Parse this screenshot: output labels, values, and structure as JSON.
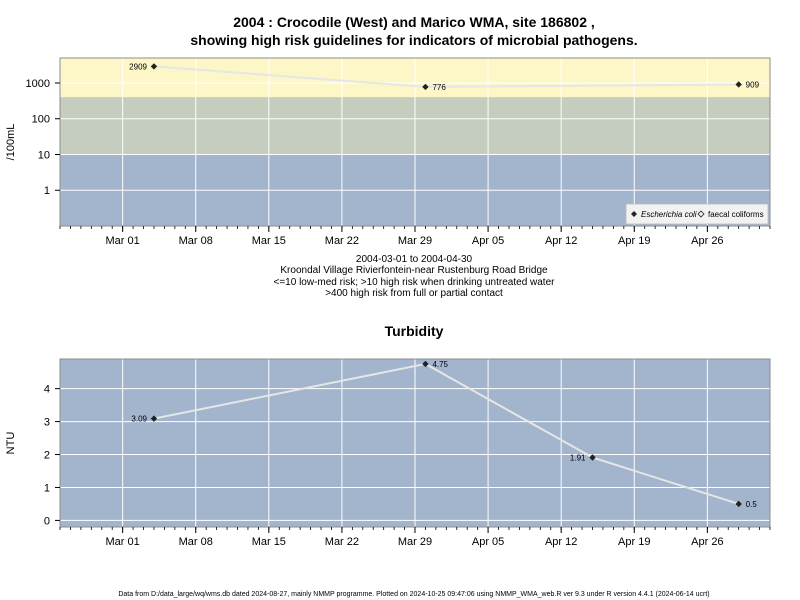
{
  "header": {
    "title_line1": "2004 : Crocodile (West) and Marico WMA, site 186802 ,",
    "title_line2": "showing high risk guidelines for indicators of microbial pathogens."
  },
  "notes": {
    "date_range": "2004-03-01 to 2004-04-30",
    "site_name": "Kroondal Village Rivierfontein-near Rustenburg Road Bridge",
    "guideline_1": "<=10 low-med risk; >10 high risk when drinking untreated water",
    "guideline_2": ">400 high risk from full or partial contact"
  },
  "footer": {
    "text": "Data from D:/data_large/wq/wms.db dated 2024-08-27, mainly NMMP programme. Plotted on 2024-10-25 09:47:06 using NMMP_WMA_web.R ver 9.3 under R version 4.4.1 (2024-06-14 ucrt)"
  },
  "colors": {
    "panel_blue": "#a3b4cd",
    "band_green": "#c5cdbf",
    "band_yellow": "#fdf7c8",
    "grid": "#ffffff",
    "line": "#e6e6e6",
    "point": "#222222"
  },
  "chart_data": [
    {
      "type": "line",
      "title": "",
      "ylabel": "/100mL",
      "yscale": "log",
      "ylim": [
        0.1,
        5000
      ],
      "xlim": [
        "2004-02-24",
        "2004-05-02"
      ],
      "x_ticks": [
        "Mar 01",
        "Mar 08",
        "Mar 15",
        "Mar 22",
        "Mar 29",
        "Apr 05",
        "Apr 12",
        "Apr 19",
        "Apr 26"
      ],
      "y_ticks": [
        "1",
        "10",
        "100",
        "1000"
      ],
      "y_tick_values": [
        1,
        10,
        100,
        1000
      ],
      "bands": [
        {
          "from": 0.1,
          "to": 10,
          "color": "#a3b4cd"
        },
        {
          "from": 10,
          "to": 400,
          "color": "#c5cdbf"
        },
        {
          "from": 400,
          "to": 5000,
          "color": "#fdf7c8"
        }
      ],
      "grid": true,
      "legend": {
        "position": "bottom-right",
        "entries": [
          "Escherichia coli",
          "faecal coliforms"
        ]
      },
      "series": [
        {
          "name": "Escherichia coli",
          "x": [
            "2004-03-04",
            "2004-03-30",
            "2004-04-29"
          ],
          "values": [
            2909,
            776,
            909
          ],
          "labels": [
            "2909",
            "776",
            "909"
          ]
        }
      ]
    },
    {
      "type": "line",
      "title": "Turbidity",
      "ylabel": "NTU",
      "yscale": "linear",
      "ylim": [
        -0.2,
        4.9
      ],
      "xlim": [
        "2004-02-24",
        "2004-05-02"
      ],
      "x_ticks": [
        "Mar 01",
        "Mar 08",
        "Mar 15",
        "Mar 22",
        "Mar 29",
        "Apr 05",
        "Apr 12",
        "Apr 19",
        "Apr 26"
      ],
      "y_ticks": [
        "0",
        "1",
        "2",
        "3",
        "4"
      ],
      "y_tick_values": [
        0,
        1,
        2,
        3,
        4
      ],
      "grid": true,
      "series": [
        {
          "x": [
            "2004-03-04",
            "2004-03-30",
            "2004-04-15",
            "2004-04-29"
          ],
          "values": [
            3.09,
            4.75,
            1.91,
            0.5
          ],
          "labels": [
            "3.09",
            "4.75",
            "1.91",
            "0.5"
          ]
        }
      ]
    }
  ]
}
